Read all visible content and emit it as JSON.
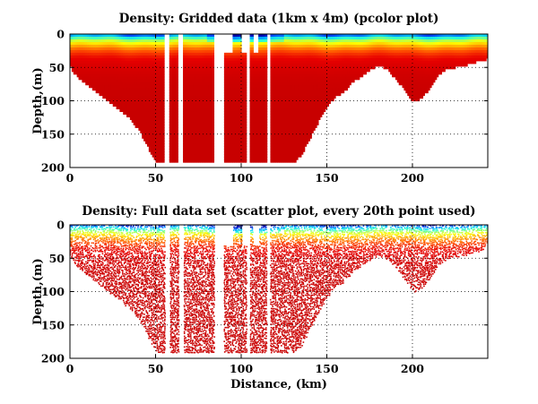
{
  "chart_data": [
    {
      "type": "heatmap",
      "title": "Density: Gridded data (1km x 4m) (pcolor plot)",
      "xlabel": "",
      "ylabel": "Depth,(m)",
      "xlim": [
        0,
        244
      ],
      "ylim": [
        200,
        0
      ],
      "xticks": [
        "0",
        "50",
        "100",
        "150",
        "200"
      ],
      "yticks": [
        "0",
        "50",
        "100",
        "150",
        "200"
      ],
      "grid": true,
      "colormap": "jet",
      "colormap_colors": [
        "#0000aa",
        "#0050ff",
        "#00c8ff",
        "#30ffd0",
        "#a0ff60",
        "#ffff00",
        "#ffb000",
        "#ff5000",
        "#e80000",
        "#c80000"
      ],
      "value_range": [
        0,
        1
      ],
      "rendering": "gridded",
      "cell_size_km": 1,
      "cell_size_m": 4,
      "bottom_profile": {
        "distance_km": [
          0,
          2,
          5,
          10,
          15,
          20,
          25,
          30,
          35,
          38,
          40,
          42,
          45,
          50,
          55,
          60,
          65,
          70,
          75,
          80,
          85,
          88,
          90,
          95,
          100,
          105,
          110,
          115,
          120,
          125,
          130,
          135,
          140,
          145,
          150,
          155,
          160,
          165,
          170,
          175,
          180,
          185,
          190,
          195,
          198,
          200,
          202,
          205,
          210,
          215,
          220,
          225,
          230,
          235,
          240,
          244
        ],
        "depth_m": [
          45,
          55,
          65,
          75,
          85,
          95,
          105,
          115,
          125,
          135,
          140,
          150,
          165,
          190,
          192,
          192,
          192,
          192,
          192,
          192,
          192,
          192,
          192,
          192,
          192,
          192,
          192,
          192,
          192,
          192,
          192,
          180,
          155,
          130,
          108,
          92,
          85,
          70,
          62,
          52,
          45,
          50,
          65,
          80,
          90,
          100,
          100,
          95,
          80,
          60,
          50,
          48,
          45,
          42,
          38,
          35
        ]
      },
      "gaps_km": [
        [
          55,
          58
        ],
        [
          63,
          66
        ],
        [
          84,
          90
        ],
        [
          103,
          105
        ],
        [
          115,
          117
        ]
      ],
      "surface_gaps_km": [
        [
          90,
          95
        ],
        [
          100,
          104
        ],
        [
          107,
          110
        ]
      ]
    },
    {
      "type": "scatter",
      "title": "Density: Full data set (scatter plot, every 20th point used)",
      "xlabel": "Distance, (km)",
      "ylabel": "Depth,(m)",
      "xlim": [
        0,
        244
      ],
      "ylim": [
        200,
        0
      ],
      "xticks": [
        "0",
        "50",
        "100",
        "150",
        "200"
      ],
      "yticks": [
        "0",
        "50",
        "100",
        "150",
        "200"
      ],
      "grid": true,
      "colormap": "jet",
      "colormap_colors": [
        "#0000aa",
        "#0050ff",
        "#00c8ff",
        "#30ffd0",
        "#a0ff60",
        "#ffff00",
        "#ffb000",
        "#ff5000",
        "#e80000",
        "#c80000"
      ],
      "value_range": [
        0,
        1
      ],
      "rendering": "scatter",
      "bottom_profile": {
        "distance_km": [
          0,
          2,
          5,
          10,
          15,
          20,
          25,
          30,
          35,
          38,
          40,
          42,
          45,
          50,
          55,
          60,
          65,
          70,
          75,
          80,
          85,
          88,
          90,
          95,
          100,
          105,
          110,
          115,
          120,
          125,
          130,
          135,
          140,
          145,
          150,
          155,
          160,
          165,
          170,
          175,
          180,
          185,
          190,
          195,
          198,
          200,
          202,
          205,
          210,
          215,
          220,
          225,
          230,
          235,
          240,
          244
        ],
        "depth_m": [
          45,
          55,
          65,
          75,
          85,
          95,
          105,
          115,
          125,
          135,
          140,
          150,
          165,
          190,
          192,
          192,
          192,
          192,
          192,
          192,
          192,
          192,
          192,
          192,
          192,
          192,
          192,
          192,
          192,
          192,
          192,
          180,
          155,
          130,
          108,
          92,
          85,
          70,
          62,
          52,
          45,
          50,
          65,
          80,
          90,
          100,
          100,
          95,
          80,
          60,
          50,
          48,
          45,
          42,
          38,
          35
        ]
      },
      "gaps_km": [
        [
          55,
          58
        ],
        [
          63,
          66
        ],
        [
          84,
          90
        ],
        [
          103,
          105
        ],
        [
          115,
          117
        ]
      ],
      "surface_gaps_km": [
        [
          90,
          95
        ],
        [
          100,
          104
        ],
        [
          107,
          110
        ]
      ]
    }
  ]
}
